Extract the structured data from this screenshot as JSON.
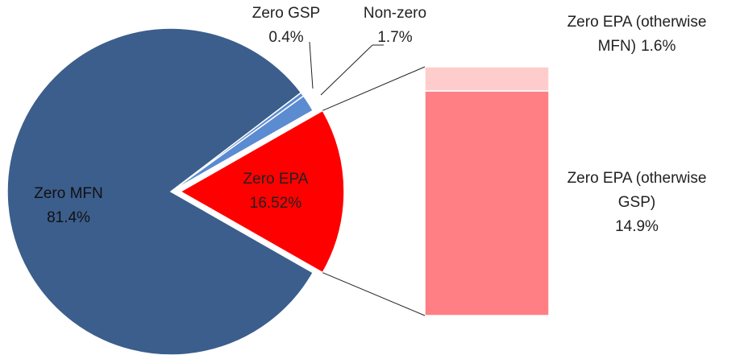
{
  "chart_data": {
    "type": "bar-of-pie",
    "categories": [
      "Zero MFN",
      "Zero GSP",
      "Non-zero",
      "Zero EPA"
    ],
    "values": [
      81.4,
      0.4,
      1.7,
      16.52
    ],
    "value_labels": [
      "81.4%",
      "0.4%",
      "1.7%",
      "16.52%"
    ],
    "colors": [
      "#3b5e8c",
      "#5b8bd0",
      "#5b8bd0",
      "#ff0000"
    ],
    "bar": {
      "categories": [
        "Zero EPA (otherwise MFN)",
        "Zero EPA (otherwise GSP)"
      ],
      "values": [
        1.6,
        14.9
      ],
      "value_labels": [
        "1.6%",
        "14.9%"
      ],
      "colors": [
        "#ffcccc",
        "#ff7f85"
      ]
    }
  }
}
